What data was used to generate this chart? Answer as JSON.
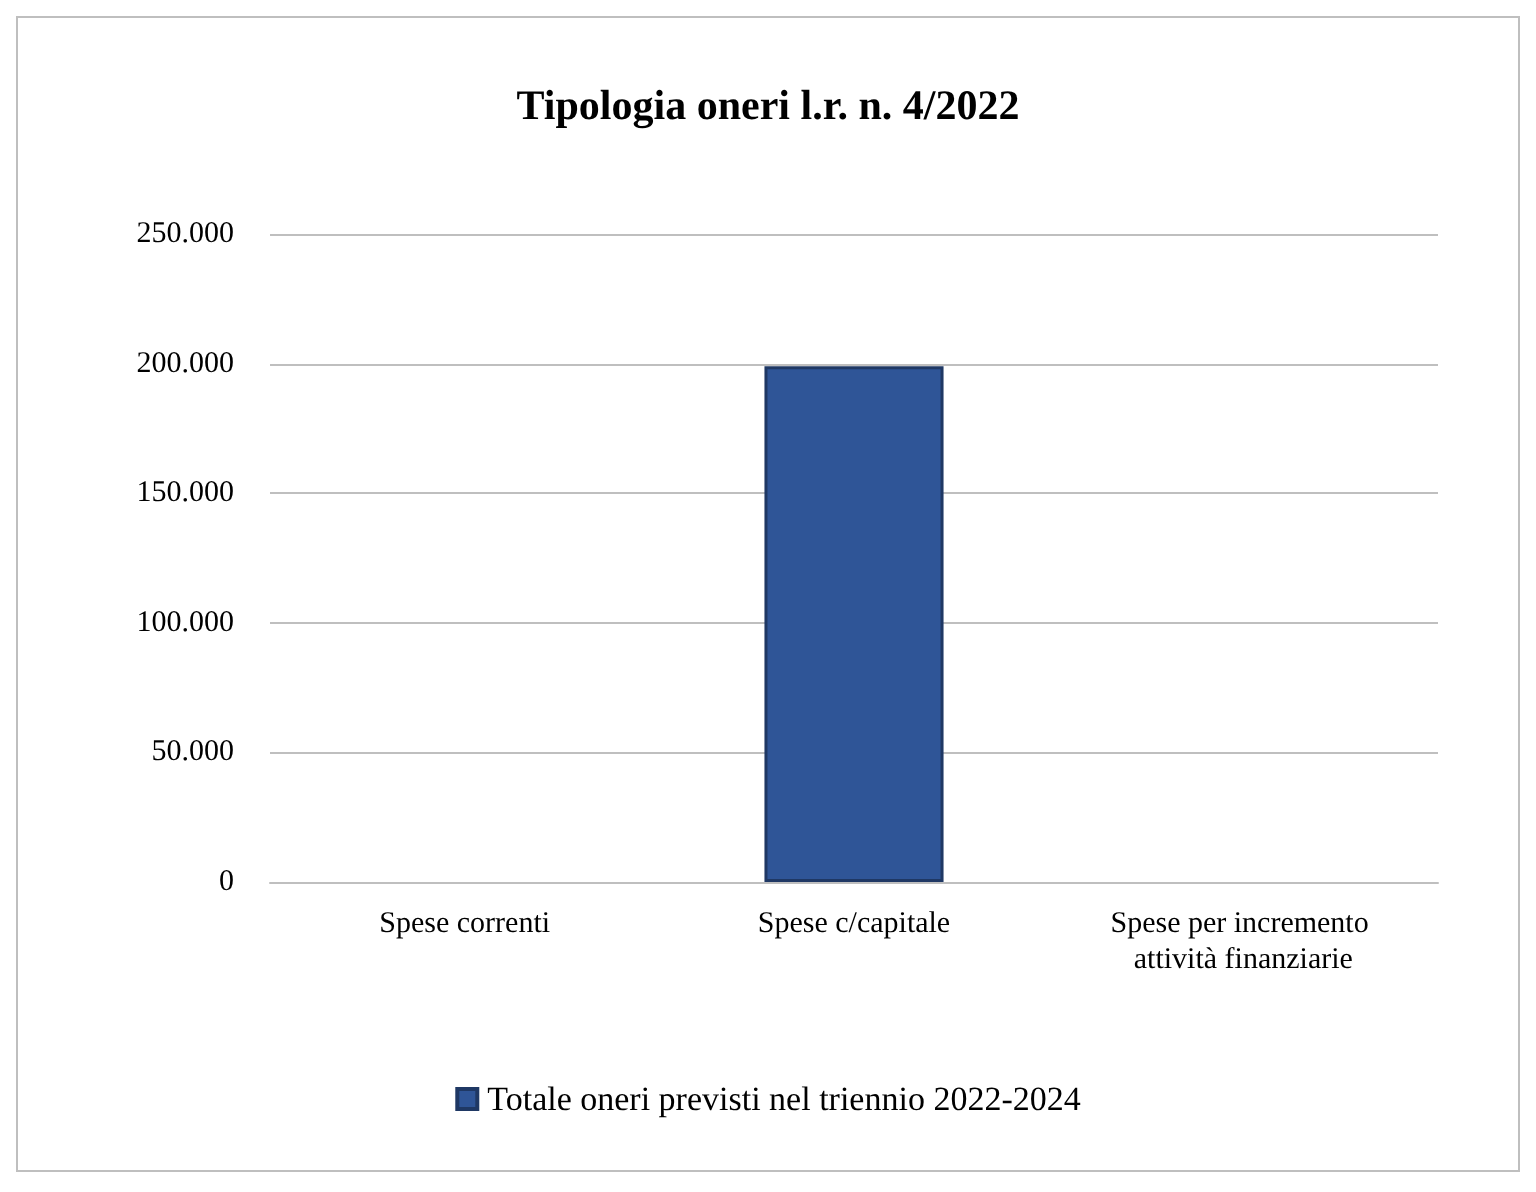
{
  "chart_data": {
    "type": "bar",
    "title": "Tipologia oneri l.r. n. 4/2022",
    "categories": [
      "Spese correnti",
      "Spese c/capitale",
      "Spese per incremento attività finanziarie"
    ],
    "series": [
      {
        "name": "Totale oneri previsti nel triennio 2022-2024",
        "color": "#2f5597",
        "values": [
          0,
          199000,
          0
        ]
      }
    ],
    "ylim": [
      0,
      250000
    ],
    "yticks": [
      {
        "value": 0,
        "label": "0"
      },
      {
        "value": 50000,
        "label": "50.000"
      },
      {
        "value": 100000,
        "label": "100.000"
      },
      {
        "value": 150000,
        "label": "150.000"
      },
      {
        "value": 200000,
        "label": "200.000"
      },
      {
        "value": 250000,
        "label": "250.000"
      }
    ],
    "grid": "y",
    "legend": "bottom"
  }
}
